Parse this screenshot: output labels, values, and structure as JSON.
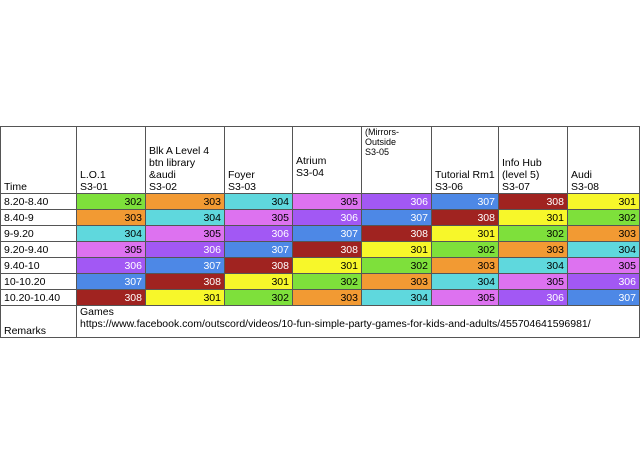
{
  "header": {
    "time": "Time",
    "locations": [
      {
        "lines": [
          "L.O.1",
          "S3-01"
        ]
      },
      {
        "lines": [
          "Blk A Level 4",
          "btn library",
          "&audi",
          "S3-02"
        ]
      },
      {
        "lines": [
          "Foyer",
          "S3-03"
        ]
      },
      {
        "lines": [
          "Atrium",
          "S3-04"
        ]
      },
      {
        "lines": [
          "(Mirrors-Outside",
          "S3-05"
        ]
      },
      {
        "lines": [
          "Tutorial Rm1",
          "S3-06"
        ]
      },
      {
        "lines": [
          "Info Hub",
          "(level 5)",
          "S3-07"
        ]
      },
      {
        "lines": [
          "Audi",
          "S3-08"
        ]
      }
    ]
  },
  "rows": [
    {
      "time": "8.20-8.40",
      "cells": [
        "302",
        "303",
        "304",
        "305",
        "306",
        "307",
        "308",
        "301"
      ]
    },
    {
      "time": "8.40-9",
      "cells": [
        "303",
        "304",
        "305",
        "306",
        "307",
        "308",
        "301",
        "302"
      ]
    },
    {
      "time": "9-9.20",
      "cells": [
        "304",
        "305",
        "306",
        "307",
        "308",
        "301",
        "302",
        "303"
      ]
    },
    {
      "time": "9.20-9.40",
      "cells": [
        "305",
        "306",
        "307",
        "308",
        "301",
        "302",
        "303",
        "304"
      ]
    },
    {
      "time": "9.40-10",
      "cells": [
        "306",
        "307",
        "308",
        "301",
        "302",
        "303",
        "304",
        "305"
      ]
    },
    {
      "time": "10-10.20",
      "cells": [
        "307",
        "308",
        "301",
        "302",
        "303",
        "304",
        "305",
        "306"
      ]
    },
    {
      "time": "10.20-10.40",
      "cells": [
        "308",
        "301",
        "302",
        "303",
        "304",
        "305",
        "306",
        "307"
      ]
    }
  ],
  "class_colors": {
    "301": "#f7f72a",
    "302": "#7ee03b",
    "303": "#f29a33",
    "304": "#5fd8dd",
    "305": "#dd72f0",
    "306": "#a258f4",
    "307": "#4d88e6",
    "308": "#a02320"
  },
  "remarks": {
    "label": "Remarks",
    "title": "Games",
    "link": "https://www.facebook.com/outscord/videos/10-fun-simple-party-games-for-kids-and-adults/455704641596981/"
  }
}
